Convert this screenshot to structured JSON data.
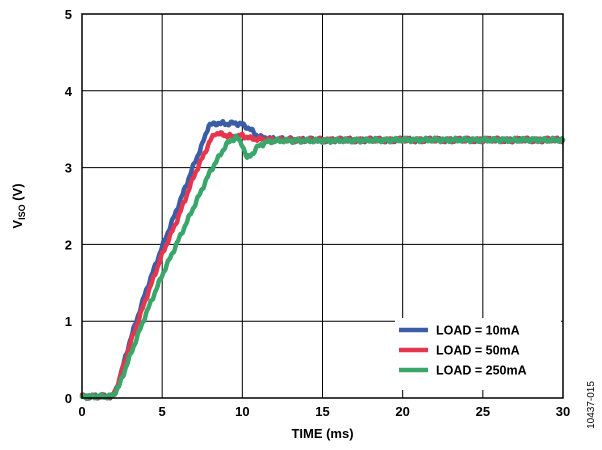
{
  "figure_id": "10437-015",
  "chart_data": {
    "type": "line",
    "xlabel": "TIME (ms)",
    "ylabel": {
      "main": "V",
      "sub": "ISO",
      "unit": " (V)"
    },
    "xlim": [
      0,
      30
    ],
    "ylim": [
      0,
      5
    ],
    "xticks": [
      0,
      5,
      10,
      15,
      20,
      25,
      30
    ],
    "yticks": [
      0,
      1,
      2,
      3,
      4,
      5
    ],
    "grid": true,
    "legend_position": "bottom-right",
    "series": [
      {
        "name": "LOAD = 10mA",
        "color": "#3A5DA6",
        "x": [
          0,
          1.9,
          2.2,
          3,
          4,
          5,
          6,
          7,
          7.5,
          7.9,
          8.5,
          9,
          9.5,
          10,
          10.5,
          11,
          12,
          15,
          20,
          25,
          30
        ],
        "y": [
          0.02,
          0.02,
          0.15,
          0.75,
          1.4,
          1.97,
          2.5,
          3.05,
          3.3,
          3.55,
          3.58,
          3.57,
          3.58,
          3.56,
          3.5,
          3.4,
          3.37,
          3.36,
          3.36,
          3.36,
          3.36
        ]
      },
      {
        "name": "LOAD = 50mA",
        "color": "#E5364F",
        "x": [
          0,
          1.9,
          2.2,
          3,
          4,
          5,
          6,
          7,
          8,
          8.3,
          9,
          9.5,
          10,
          10.5,
          11,
          12,
          15,
          20,
          25,
          30
        ],
        "y": [
          0.02,
          0.02,
          0.15,
          0.7,
          1.3,
          1.87,
          2.35,
          2.9,
          3.35,
          3.45,
          3.42,
          3.4,
          3.42,
          3.38,
          3.37,
          3.36,
          3.36,
          3.36,
          3.36,
          3.36
        ]
      },
      {
        "name": "LOAD = 250mA",
        "color": "#3AA66A",
        "x": [
          0,
          1.9,
          2.3,
          3,
          4,
          5,
          6,
          7,
          8,
          9,
          9.6,
          10,
          10.3,
          10.7,
          11,
          11.5,
          12,
          15,
          20,
          25,
          30
        ],
        "y": [
          0.02,
          0.02,
          0.15,
          0.55,
          1.1,
          1.6,
          2.05,
          2.5,
          2.95,
          3.3,
          3.4,
          3.3,
          3.12,
          3.2,
          3.28,
          3.33,
          3.35,
          3.35,
          3.36,
          3.36,
          3.36
        ]
      }
    ]
  }
}
